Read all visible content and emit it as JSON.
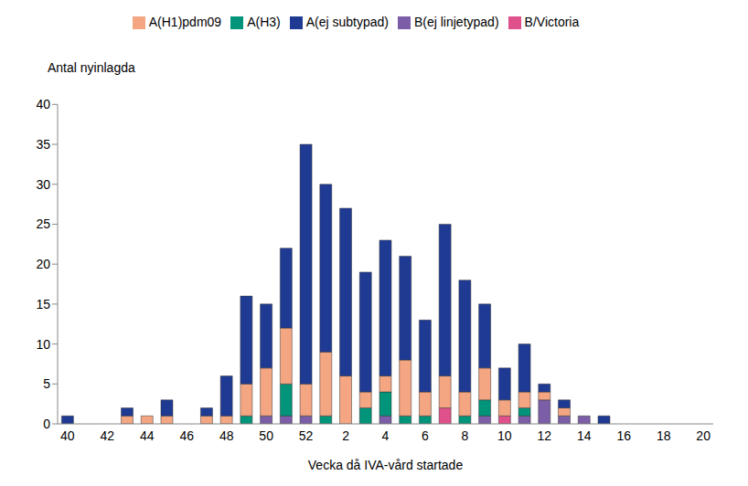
{
  "chart_data": {
    "type": "bar",
    "stacked": true,
    "grid": false,
    "legend": "top",
    "x_label": "Vecka då IVA-vård startade",
    "y_label": "Antal nyinlagda",
    "categories": [
      40,
      null,
      42,
      null,
      44,
      null,
      46,
      null,
      48,
      null,
      50,
      null,
      52,
      null,
      2,
      null,
      4,
      null,
      6,
      null,
      8,
      null,
      10,
      null,
      12,
      null,
      14,
      null,
      16,
      null,
      18,
      null,
      20
    ],
    "ylim": [
      0,
      40
    ],
    "yticks": [
      0,
      5,
      10,
      15,
      20,
      25,
      30,
      35,
      40
    ],
    "series": [
      {
        "name": "B(ej linjetypad)",
        "color": "#7b5ea7",
        "values": [
          0,
          0,
          0,
          0,
          0,
          0,
          0,
          0,
          0,
          0,
          1,
          1,
          1,
          0,
          0,
          0,
          1,
          0,
          0,
          0,
          0,
          1,
          0,
          1,
          3,
          1,
          1,
          0,
          0,
          0,
          0,
          0,
          0
        ]
      },
      {
        "name": "B/Victoria",
        "color": "#e0508a",
        "values": [
          0,
          0,
          0,
          0,
          0,
          0,
          0,
          0,
          0,
          0,
          0,
          0,
          0,
          0,
          0,
          0,
          0,
          0,
          0,
          2,
          0,
          0,
          1,
          0,
          0,
          0,
          0,
          0,
          0,
          0,
          0,
          0,
          0
        ]
      },
      {
        "name": "A(H3)",
        "color": "#00957a",
        "values": [
          0,
          0,
          0,
          0,
          0,
          0,
          0,
          0,
          0,
          1,
          0,
          4,
          0,
          1,
          0,
          2,
          3,
          1,
          1,
          0,
          1,
          2,
          0,
          1,
          0,
          0,
          0,
          0,
          0,
          0,
          0,
          0,
          0
        ]
      },
      {
        "name": "A(H1)pdm09",
        "color": "#f4a582",
        "values": [
          0,
          0,
          0,
          1,
          1,
          1,
          0,
          1,
          1,
          4,
          6,
          7,
          4,
          8,
          6,
          2,
          2,
          7,
          3,
          4,
          3,
          4,
          2,
          2,
          1,
          1,
          0,
          0,
          0,
          0,
          0,
          0,
          0
        ]
      },
      {
        "name": "A(ej subtypad)",
        "color": "#1f3a93",
        "values": [
          1,
          0,
          0,
          1,
          0,
          2,
          0,
          1,
          5,
          11,
          8,
          10,
          30,
          21,
          21,
          15,
          17,
          13,
          9,
          19,
          14,
          8,
          4,
          6,
          1,
          1,
          0,
          1,
          0,
          0,
          0,
          0,
          0
        ]
      }
    ]
  }
}
